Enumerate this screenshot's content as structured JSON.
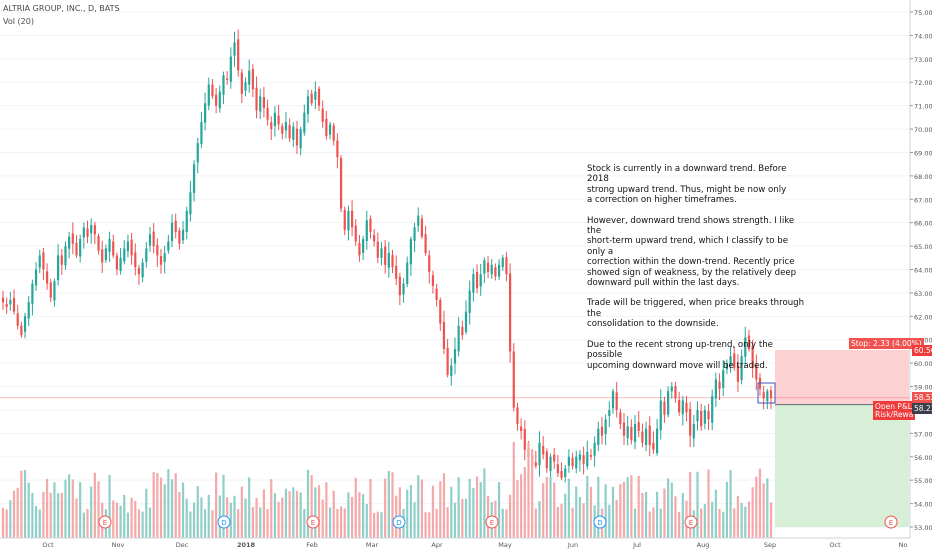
{
  "header": {
    "title": "ALTRIA GROUP, INC., D, BATS",
    "volume_label": "Vol (20)"
  },
  "annotation": {
    "paragraphs": [
      "Stock is currently in a downward trend. Before 2018\nstrong upward trend. Thus, might be now only\na correction on higher timeframes.",
      "However, downward trend shows strength. I like the\nshort-term upward trend, which I classify to be only a\ncorrection within the down-trend. Recently price\nshowed sign of weakness, by the relatively deep\ndownward pull within the last days.",
      "Trade will be triggered, when price breaks through the\nconsolidation to the downside.",
      "Due to the recent strong up-trend, only the possible\nupcoming downward move will be traded."
    ]
  },
  "position_tool": {
    "stop_label": "Stop: 2.33 (4.00%)",
    "open_pl_label": "Open P&L:",
    "risk_reward_label": "Risk/Rewa",
    "stop_price": 60.56,
    "entry_price": 58.23,
    "target_price": 53.0
  },
  "price_tags": {
    "stop": "60.56",
    "last": "58.52",
    "entry": "58.23"
  },
  "colors": {
    "up": "#26a69a",
    "down": "#ef5350",
    "vol_up": "#8fcfc8",
    "vol_down": "#f5a8a8",
    "stop_zone": "#fbc9c9",
    "target_zone": "#cfeccf",
    "axis_text": "#555555",
    "marker_earnings": "#ef5350",
    "marker_dividend": "#2196f3"
  },
  "chart_data": {
    "type": "candlestick",
    "title": "ALTRIA GROUP, INC., D, BATS",
    "y_axis": {
      "range": [
        52.6,
        75.4
      ],
      "tick_labels": [
        "75.00",
        "74.00",
        "73.00",
        "72.00",
        "71.00",
        "70.00",
        "69.00",
        "68.00",
        "67.00",
        "66.00",
        "65.00",
        "64.00",
        "63.00",
        "62.00",
        "61.00",
        "60.00",
        "59.00",
        "58.00",
        "57.00",
        "56.00",
        "55.00",
        "54.00",
        "53.00"
      ]
    },
    "x_axis": {
      "tick_labels": [
        "Oct",
        "Nov",
        "Dec",
        "2018",
        "Feb",
        "Mar",
        "Apr",
        "May",
        "Jun",
        "Jul",
        "Aug",
        "Sep",
        "Oct",
        "No"
      ]
    },
    "closes": [
      62.6,
      62.4,
      62.7,
      62.2,
      61.6,
      61.2,
      62.0,
      62.6,
      63.4,
      64.0,
      64.6,
      64.0,
      63.4,
      62.8,
      63.5,
      64.6,
      64.2,
      65.0,
      65.4,
      65.1,
      64.6,
      65.3,
      65.8,
      65.4,
      65.9,
      65.5,
      64.8,
      64.3,
      64.9,
      65.3,
      64.6,
      64.0,
      64.5,
      64.9,
      65.2,
      64.6,
      64.1,
      63.8,
      64.3,
      64.9,
      65.5,
      65.0,
      64.6,
      64.2,
      64.7,
      65.2,
      66.0,
      65.6,
      65.1,
      65.7,
      66.5,
      67.3,
      68.5,
      69.4,
      70.3,
      71.1,
      71.9,
      71.4,
      71.0,
      71.6,
      72.3,
      72.1,
      73.1,
      73.7,
      72.5,
      71.5,
      72.0,
      72.5,
      71.7,
      70.8,
      71.4,
      70.9,
      70.4,
      70.0,
      70.7,
      70.2,
      69.8,
      70.3,
      69.6,
      70.1,
      69.3,
      70.0,
      70.7,
      71.4,
      71.1,
      71.6,
      71.0,
      70.3,
      69.7,
      70.2,
      69.5,
      68.8,
      66.6,
      65.7,
      66.5,
      65.8,
      65.2,
      64.6,
      65.3,
      66.1,
      65.6,
      65.2,
      64.5,
      64.9,
      64.2,
      64.7,
      64.1,
      63.6,
      62.9,
      63.4,
      64.3,
      65.3,
      65.8,
      66.3,
      65.4,
      64.7,
      63.9,
      63.3,
      62.7,
      61.7,
      60.6,
      59.5,
      59.9,
      60.6,
      61.6,
      61.2,
      62.2,
      63.1,
      63.8,
      63.2,
      63.8,
      64.4,
      63.9,
      64.2,
      63.7,
      64.2,
      64.5,
      63.8,
      60.5,
      58.1,
      57.4,
      57.1,
      56.3,
      56.0,
      55.7,
      55.6,
      56.6,
      56.1,
      55.5,
      56.0,
      55.8,
      55.3,
      55.1,
      55.5,
      56.0,
      55.6,
      56.0,
      56.1,
      55.7,
      56.2,
      56.0,
      56.6,
      57.2,
      56.9,
      57.6,
      58.0,
      58.8,
      58.0,
      57.4,
      56.9,
      57.3,
      56.7,
      57.4,
      57.1,
      56.6,
      57.2,
      56.5,
      56.3,
      57.2,
      58.4,
      57.8,
      58.8,
      59.0,
      58.5,
      57.9,
      58.4,
      57.9,
      56.9,
      57.4,
      58.0,
      57.3,
      58.0,
      57.6,
      58.6,
      59.3,
      58.9,
      59.7,
      60.0,
      60.3,
      59.8,
      59.2,
      60.3,
      61.1,
      60.6,
      59.8,
      59.3,
      58.9,
      58.5,
      58.8,
      58.52
    ]
  }
}
